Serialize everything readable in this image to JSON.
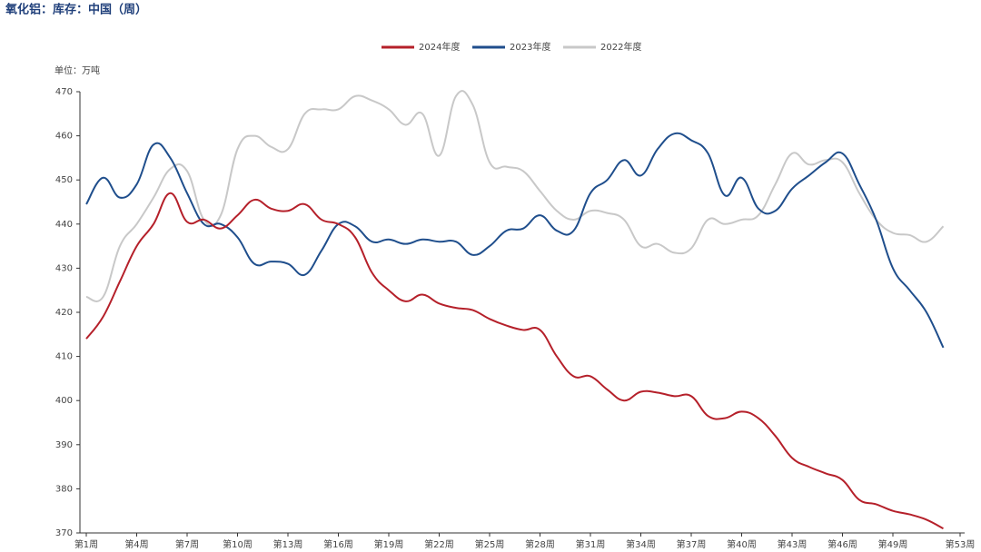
{
  "chart_data": {
    "type": "line",
    "title": "氧化铝：库存：中国（周）",
    "unit": "单位：万吨",
    "categories": [
      "第1周",
      null,
      null,
      "第4周",
      null,
      null,
      "第7周",
      null,
      null,
      "第10周",
      null,
      null,
      "第13周",
      null,
      null,
      "第16周",
      null,
      null,
      "第19周",
      null,
      null,
      "第22周",
      null,
      null,
      "第25周",
      null,
      null,
      "第28周",
      null,
      null,
      "第31周",
      null,
      null,
      "第34周",
      null,
      null,
      "第37周",
      null,
      null,
      "第40周",
      null,
      null,
      "第43周",
      null,
      null,
      "第46周",
      null,
      null,
      "第49周",
      null,
      null,
      null,
      "第53周"
    ],
    "ylim": [
      370,
      470
    ],
    "yticks": [
      370,
      380,
      390,
      400,
      410,
      420,
      430,
      440,
      450,
      460,
      470
    ],
    "grid": false,
    "legend": "top",
    "series": [
      {
        "name": "2024年度",
        "color": "#b5202a",
        "values": [
          414,
          419,
          427,
          435,
          440,
          447,
          440.5,
          441,
          439,
          442,
          445.5,
          443.5,
          443,
          444.5,
          441,
          440,
          437,
          429,
          425,
          422.5,
          424,
          422,
          421,
          420.5,
          418.5,
          417,
          416,
          416,
          410,
          405.5,
          405.5,
          402.5,
          400,
          402,
          401.8,
          401,
          401,
          396.5,
          396,
          397.5,
          396,
          392,
          387,
          385,
          383.5,
          382,
          377.5,
          376.5,
          375,
          374.2,
          373,
          371,
          null
        ]
      },
      {
        "name": "2023年度",
        "color": "#1f4e8c",
        "values": [
          444.5,
          450.5,
          446,
          449,
          458,
          455,
          447,
          440,
          440,
          437,
          431,
          431.5,
          431,
          428.5,
          434,
          440,
          439.5,
          436,
          436.5,
          435.5,
          436.5,
          436,
          436,
          433,
          435,
          438.5,
          439,
          442,
          438.5,
          438.5,
          447,
          450,
          454.5,
          451,
          457,
          460.5,
          459,
          456,
          446.5,
          450.5,
          443.5,
          443,
          448,
          451,
          454,
          456,
          449,
          441,
          430,
          425,
          420,
          412,
          null
        ]
      },
      {
        "name": "2022年度",
        "color": "#c8c8c8",
        "values": [
          423.5,
          423.5,
          435,
          440,
          446,
          452.5,
          452,
          441,
          442,
          457,
          460,
          457.5,
          457,
          465,
          466,
          466,
          469,
          468,
          466,
          462.5,
          465,
          455.5,
          469,
          467,
          454,
          453,
          452,
          447.5,
          443,
          441,
          443,
          442.5,
          441,
          435,
          435.5,
          433.5,
          434.5,
          441,
          440,
          441,
          442,
          449,
          456,
          453.5,
          454.5,
          454,
          447,
          441,
          438,
          437.5,
          436,
          439.5,
          null
        ]
      }
    ]
  }
}
